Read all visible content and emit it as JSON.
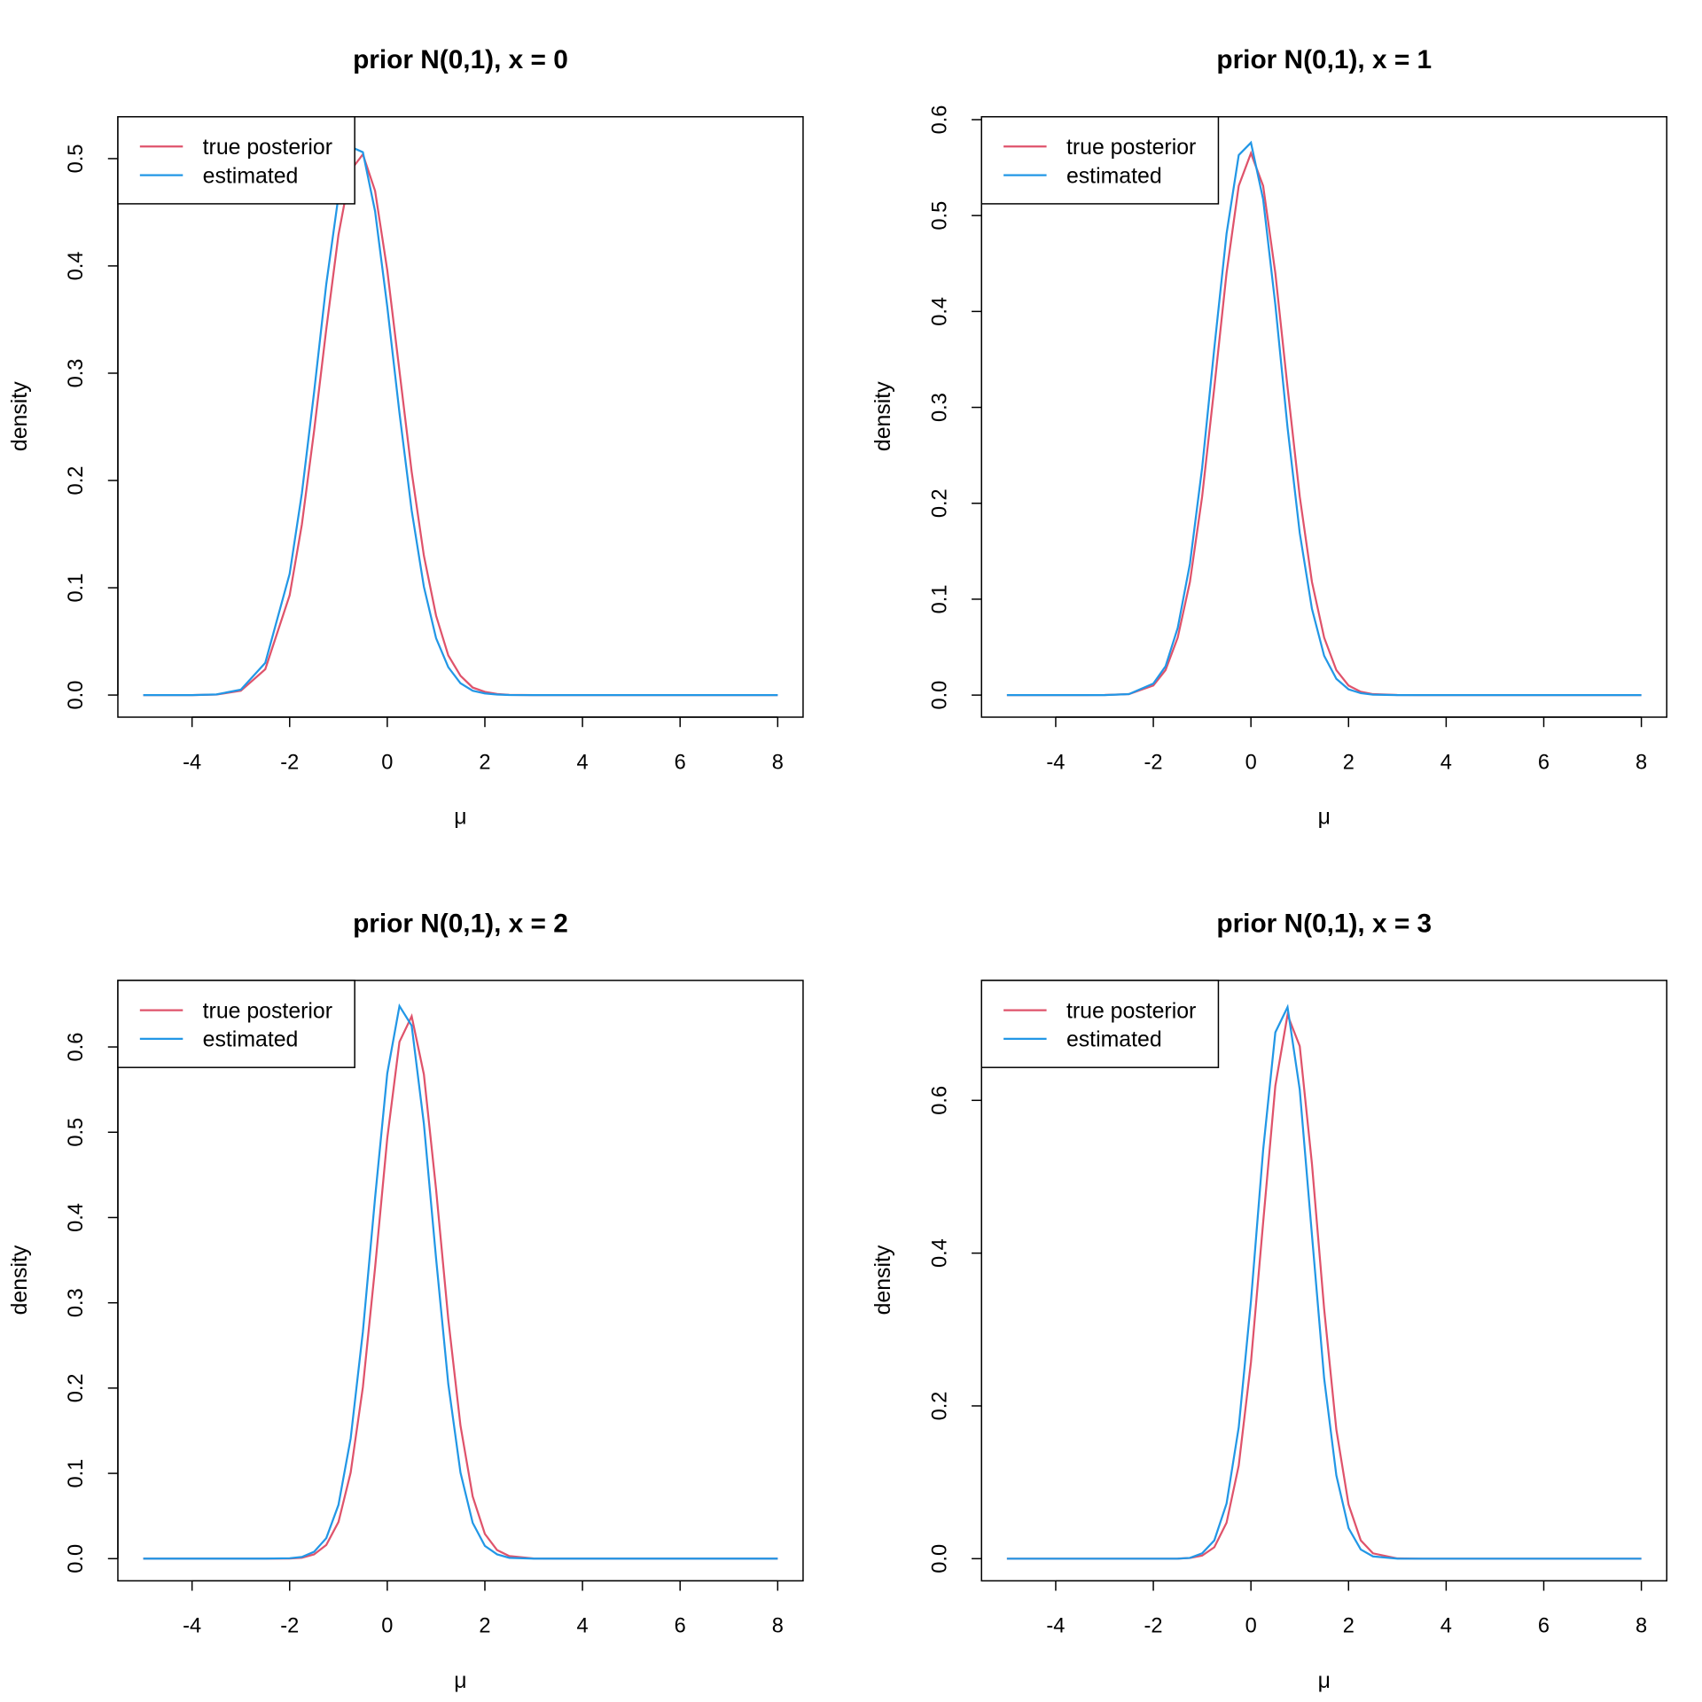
{
  "chart_data": [
    {
      "type": "line",
      "title": "prior N(0,1), x = 0",
      "xlabel": "μ",
      "ylabel": "density",
      "legend": "topleft",
      "x": [
        -5,
        -4,
        -3.5,
        -3,
        -2.5,
        -2,
        -1.75,
        -1.5,
        -1.25,
        -1,
        -0.75,
        -0.5,
        -0.25,
        0,
        0.25,
        0.5,
        0.75,
        1,
        1.25,
        1.5,
        1.75,
        2,
        2.25,
        2.5,
        3,
        3.5,
        4,
        5,
        6,
        7,
        8
      ],
      "series": [
        {
          "name": "true posterior",
          "color": "#DF536B",
          "values": [
            0,
            0,
            0.0005,
            0.004,
            0.024,
            0.093,
            0.159,
            0.246,
            0.341,
            0.429,
            0.489,
            0.504,
            0.47,
            0.396,
            0.302,
            0.208,
            0.13,
            0.074,
            0.037,
            0.018,
            0.007,
            0.003,
            0.001,
            0.0002,
            0,
            0,
            0,
            0,
            0,
            0,
            0
          ]
        },
        {
          "name": "estimated",
          "color": "#2297E6",
          "values": [
            0,
            0,
            0.0006,
            0.005,
            0.03,
            0.113,
            0.188,
            0.282,
            0.383,
            0.465,
            0.511,
            0.506,
            0.451,
            0.362,
            0.263,
            0.172,
            0.101,
            0.053,
            0.026,
            0.011,
            0.004,
            0.0015,
            0.0005,
            0.0001,
            0,
            0,
            0,
            0,
            0,
            0,
            0
          ]
        }
      ],
      "xlim": [
        -5.52,
        8.52
      ],
      "ylim": [
        -0.0206,
        0.539
      ],
      "xticks": [
        -4,
        -2,
        0,
        2,
        4,
        6,
        8
      ],
      "yticks": [
        {
          "value": 0,
          "label": "0.0"
        },
        0.1,
        0.2,
        0.3,
        0.4,
        0.5
      ]
    },
    {
      "type": "line",
      "title": "prior N(0,1), x = 1",
      "xlabel": "μ",
      "ylabel": "density",
      "legend": "topleft",
      "x": [
        -5,
        -4,
        -3.5,
        -3,
        -2.5,
        -2,
        -1.75,
        -1.5,
        -1.25,
        -1,
        -0.75,
        -0.5,
        -0.25,
        0,
        0.25,
        0.5,
        0.75,
        1,
        1.25,
        1.5,
        1.75,
        2,
        2.25,
        2.5,
        3,
        3.5,
        4,
        5,
        6,
        7,
        8
      ],
      "series": [
        {
          "name": "true posterior",
          "color": "#DF536B",
          "values": [
            0,
            0,
            0,
            0.0001,
            0.001,
            0.01,
            0.026,
            0.06,
            0.118,
            0.207,
            0.321,
            0.44,
            0.531,
            0.565,
            0.531,
            0.44,
            0.321,
            0.207,
            0.118,
            0.06,
            0.026,
            0.01,
            0.0035,
            0.001,
            0.0001,
            0,
            0,
            0,
            0,
            0,
            0
          ]
        },
        {
          "name": "estimated",
          "color": "#2297E6",
          "values": [
            0,
            0,
            0,
            0,
            0.001,
            0.012,
            0.03,
            0.07,
            0.137,
            0.237,
            0.362,
            0.481,
            0.563,
            0.576,
            0.517,
            0.407,
            0.279,
            0.169,
            0.09,
            0.041,
            0.017,
            0.006,
            0.002,
            0.0005,
            0,
            0,
            0,
            0,
            0,
            0,
            0
          ]
        }
      ],
      "xlim": [
        -5.52,
        8.52
      ],
      "ylim": [
        -0.023,
        0.603
      ],
      "xticks": [
        -4,
        -2,
        0,
        2,
        4,
        6,
        8
      ],
      "yticks": [
        {
          "value": 0,
          "label": "0.0"
        },
        0.1,
        0.2,
        0.3,
        0.4,
        0.5,
        0.6
      ]
    },
    {
      "type": "line",
      "title": "prior N(0,1), x = 2",
      "xlabel": "μ",
      "ylabel": "density",
      "legend": "topleft",
      "x": [
        -5,
        -4,
        -3.5,
        -3,
        -2.5,
        -2,
        -1.75,
        -1.5,
        -1.25,
        -1,
        -0.75,
        -0.5,
        -0.25,
        0,
        0.25,
        0.5,
        0.75,
        1,
        1.25,
        1.5,
        1.75,
        2,
        2.25,
        2.5,
        3,
        3.5,
        4,
        5,
        6,
        7,
        8
      ],
      "series": [
        {
          "name": "true posterior",
          "color": "#DF536B",
          "values": [
            0,
            0,
            0,
            0,
            0,
            0.0001,
            0.001,
            0.005,
            0.016,
            0.043,
            0.101,
            0.201,
            0.341,
            0.493,
            0.606,
            0.636,
            0.568,
            0.433,
            0.281,
            0.156,
            0.073,
            0.029,
            0.01,
            0.003,
            0.0002,
            0,
            0,
            0,
            0,
            0,
            0
          ]
        },
        {
          "name": "estimated",
          "color": "#2297E6",
          "values": [
            0,
            0,
            0,
            0,
            0,
            0.0005,
            0.002,
            0.008,
            0.024,
            0.063,
            0.141,
            0.266,
            0.423,
            0.569,
            0.648,
            0.625,
            0.51,
            0.352,
            0.205,
            0.101,
            0.042,
            0.015,
            0.005,
            0.001,
            0,
            0,
            0,
            0,
            0,
            0,
            0
          ]
        }
      ],
      "xlim": [
        -5.52,
        8.52
      ],
      "ylim": [
        -0.026,
        0.678
      ],
      "xticks": [
        -4,
        -2,
        0,
        2,
        4,
        6,
        8
      ],
      "yticks": [
        {
          "value": 0,
          "label": "0.0"
        },
        0.1,
        0.2,
        0.3,
        0.4,
        0.5,
        0.6
      ]
    },
    {
      "type": "line",
      "title": "prior N(0,1), x = 3",
      "xlabel": "μ",
      "ylabel": "density",
      "legend": "topleft",
      "x": [
        -5,
        -4,
        -3.5,
        -3,
        -2.5,
        -2,
        -1.75,
        -1.5,
        -1.25,
        -1,
        -0.75,
        -0.5,
        -0.25,
        0,
        0.25,
        0.5,
        0.75,
        1,
        1.25,
        1.5,
        1.75,
        2,
        2.25,
        2.5,
        3,
        3.5,
        4,
        5,
        6,
        7,
        8
      ],
      "series": [
        {
          "name": "true posterior",
          "color": "#DF536B",
          "values": [
            0,
            0,
            0,
            0,
            0,
            0,
            0,
            0.0001,
            0.001,
            0.004,
            0.015,
            0.047,
            0.122,
            0.257,
            0.44,
            0.619,
            0.712,
            0.671,
            0.517,
            0.327,
            0.169,
            0.071,
            0.024,
            0.007,
            0.0003,
            0,
            0,
            0,
            0,
            0,
            0
          ]
        },
        {
          "name": "estimated",
          "color": "#2297E6",
          "values": [
            0,
            0,
            0,
            0,
            0,
            0,
            0,
            0,
            0.001,
            0.007,
            0.024,
            0.072,
            0.172,
            0.337,
            0.535,
            0.689,
            0.722,
            0.614,
            0.424,
            0.236,
            0.109,
            0.04,
            0.012,
            0.003,
            0.0001,
            0,
            0,
            0,
            0,
            0,
            0
          ]
        }
      ],
      "xlim": [
        -5.52,
        8.52
      ],
      "ylim": [
        -0.029,
        0.757
      ],
      "xticks": [
        -4,
        -2,
        0,
        2,
        4,
        6,
        8
      ],
      "yticks": [
        {
          "value": 0,
          "label": "0.0"
        },
        0.2,
        0.4,
        0.6
      ]
    }
  ]
}
